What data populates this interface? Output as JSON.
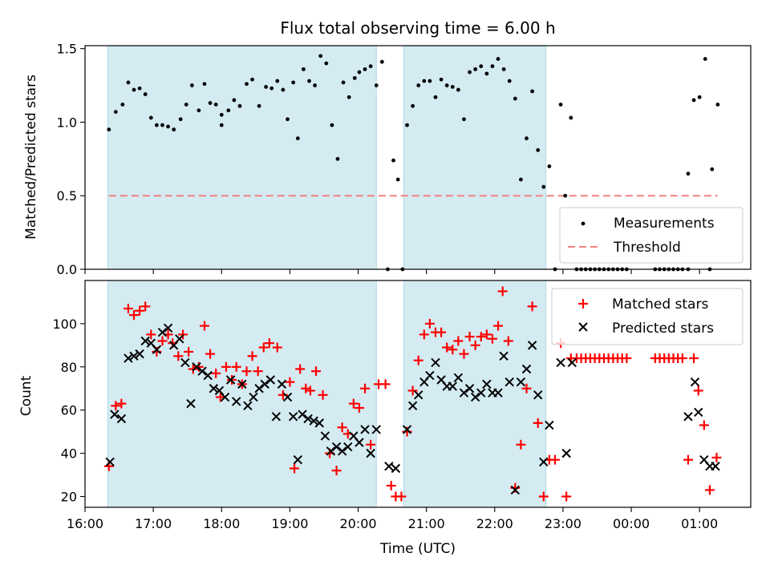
{
  "chart_data": {
    "title": "Flux total observing time = 6.00 h",
    "xlabel": "Time (UTC)",
    "x_ticks": [
      "16:00",
      "17:00",
      "18:00",
      "19:00",
      "20:00",
      "21:00",
      "22:00",
      "23:00",
      "00:00",
      "01:00"
    ],
    "x_range": [
      "16:00",
      "01:45"
    ],
    "observing_windows": [
      [
        "16:20",
        "20:16"
      ],
      [
        "20:40",
        "22:45"
      ]
    ],
    "top": {
      "type": "scatter",
      "ylabel": "Matched/Predicted stars",
      "ylim": [
        0,
        1.52
      ],
      "y_ticks": [
        "0.0",
        "0.5",
        "1.0",
        "1.5"
      ],
      "threshold": 0.5,
      "legend": {
        "position": "lower-right",
        "entries": [
          "Measurements",
          "Threshold"
        ]
      },
      "colors": {
        "measurements": "#000000",
        "threshold": "#f08080",
        "window": "#add8e6"
      },
      "measurements": [
        [
          "16:21",
          0.95
        ],
        [
          "16:27",
          1.07
        ],
        [
          "16:33",
          1.12
        ],
        [
          "16:38",
          1.27
        ],
        [
          "16:43",
          1.22
        ],
        [
          "16:48",
          1.23
        ],
        [
          "16:53",
          1.19
        ],
        [
          "16:58",
          1.03
        ],
        [
          "17:03",
          0.98
        ],
        [
          "17:08",
          0.98
        ],
        [
          "17:13",
          0.97
        ],
        [
          "17:18",
          0.95
        ],
        [
          "17:24",
          1.02
        ],
        [
          "17:29",
          1.12
        ],
        [
          "17:34",
          1.25
        ],
        [
          "17:40",
          1.08
        ],
        [
          "17:45",
          1.26
        ],
        [
          "17:50",
          1.13
        ],
        [
          "17:55",
          1.12
        ],
        [
          "18:00",
          1.05
        ],
        [
          "18:00",
          0.98
        ],
        [
          "18:06",
          1.08
        ],
        [
          "18:11",
          1.15
        ],
        [
          "18:16",
          1.11
        ],
        [
          "18:22",
          1.26
        ],
        [
          "18:27",
          1.29
        ],
        [
          "18:33",
          1.11
        ],
        [
          "18:39",
          1.24
        ],
        [
          "18:44",
          1.23
        ],
        [
          "18:49",
          1.28
        ],
        [
          "18:54",
          1.22
        ],
        [
          "18:58",
          1.02
        ],
        [
          "19:03",
          1.27
        ],
        [
          "19:07",
          0.89
        ],
        [
          "19:12",
          1.36
        ],
        [
          "19:17",
          1.28
        ],
        [
          "19:22",
          1.25
        ],
        [
          "19:27",
          1.45
        ],
        [
          "19:32",
          1.4
        ],
        [
          "19:37",
          0.98
        ],
        [
          "19:42",
          0.75
        ],
        [
          "19:47",
          1.27
        ],
        [
          "19:52",
          1.17
        ],
        [
          "19:57",
          1.3
        ],
        [
          "20:01",
          1.34
        ],
        [
          "20:06",
          1.36
        ],
        [
          "20:11",
          1.38
        ],
        [
          "20:16",
          1.25
        ],
        [
          "20:21",
          1.41
        ],
        [
          "20:26",
          0.0
        ],
        [
          "20:31",
          0.74
        ],
        [
          "20:35",
          0.61
        ],
        [
          "20:39",
          0.0
        ],
        [
          "20:43",
          0.98
        ],
        [
          "20:48",
          1.11
        ],
        [
          "20:53",
          1.25
        ],
        [
          "20:58",
          1.28
        ],
        [
          "21:03",
          1.28
        ],
        [
          "21:08",
          1.17
        ],
        [
          "21:13",
          1.29
        ],
        [
          "21:18",
          1.25
        ],
        [
          "21:23",
          1.24
        ],
        [
          "21:28",
          1.22
        ],
        [
          "21:33",
          1.02
        ],
        [
          "21:38",
          1.34
        ],
        [
          "21:43",
          1.36
        ],
        [
          "21:48",
          1.38
        ],
        [
          "21:53",
          1.33
        ],
        [
          "21:58",
          1.38
        ],
        [
          "22:03",
          1.43
        ],
        [
          "22:08",
          1.36
        ],
        [
          "22:13",
          1.28
        ],
        [
          "22:18",
          1.16
        ],
        [
          "22:23",
          0.61
        ],
        [
          "22:28",
          0.89
        ],
        [
          "22:33",
          1.21
        ],
        [
          "22:38",
          0.81
        ],
        [
          "22:43",
          0.56
        ],
        [
          "22:48",
          0.7
        ],
        [
          "22:53",
          0.0
        ],
        [
          "22:58",
          1.12
        ],
        [
          "23:02",
          0.5
        ],
        [
          "23:07",
          1.03
        ],
        [
          "23:12",
          0.0
        ],
        [
          "23:16",
          0.0
        ],
        [
          "23:20",
          0.0
        ],
        [
          "23:24",
          0.0
        ],
        [
          "23:28",
          0.0
        ],
        [
          "23:32",
          0.0
        ],
        [
          "23:36",
          0.0
        ],
        [
          "23:40",
          0.0
        ],
        [
          "23:44",
          0.0
        ],
        [
          "23:48",
          0.0
        ],
        [
          "23:52",
          0.0
        ],
        [
          "23:56",
          0.0
        ],
        [
          "00:21",
          0.0
        ],
        [
          "00:25",
          0.0
        ],
        [
          "00:29",
          0.0
        ],
        [
          "00:33",
          0.0
        ],
        [
          "00:37",
          0.0
        ],
        [
          "00:41",
          0.0
        ],
        [
          "00:45",
          0.0
        ],
        [
          "00:50",
          0.65
        ],
        [
          "00:55",
          1.15
        ],
        [
          "01:00",
          1.17
        ],
        [
          "01:05",
          1.43
        ],
        [
          "01:11",
          0.68
        ],
        [
          "01:16",
          1.12
        ],
        [
          "00:50",
          0.0
        ],
        [
          "01:09",
          0.0
        ]
      ]
    },
    "bottom": {
      "type": "scatter",
      "ylabel": "Count",
      "ylim": [
        15,
        120
      ],
      "y_ticks": [
        "20",
        "40",
        "60",
        "80",
        "100"
      ],
      "legend": {
        "position": "top-right",
        "entries": [
          "Matched stars",
          "Predicted stars"
        ]
      },
      "colors": {
        "matched": "#ff0000",
        "predicted": "#000000",
        "window": "#add8e6"
      },
      "matched": [
        [
          "16:21",
          34
        ],
        [
          "16:27",
          62
        ],
        [
          "16:32",
          63
        ],
        [
          "16:38",
          107
        ],
        [
          "16:43",
          104
        ],
        [
          "16:48",
          106
        ],
        [
          "16:53",
          108
        ],
        [
          "16:58",
          95
        ],
        [
          "17:03",
          87
        ],
        [
          "17:08",
          92
        ],
        [
          "17:13",
          95
        ],
        [
          "17:17",
          91
        ],
        [
          "17:22",
          85
        ],
        [
          "17:26",
          95
        ],
        [
          "17:31",
          87
        ],
        [
          "17:35",
          79
        ],
        [
          "17:40",
          80
        ],
        [
          "17:45",
          99
        ],
        [
          "17:50",
          86
        ],
        [
          "17:55",
          77
        ],
        [
          "17:59",
          66
        ],
        [
          "18:04",
          80
        ],
        [
          "18:09",
          74
        ],
        [
          "18:13",
          80
        ],
        [
          "18:18",
          72
        ],
        [
          "18:22",
          78
        ],
        [
          "18:27",
          85
        ],
        [
          "18:32",
          78
        ],
        [
          "18:37",
          89
        ],
        [
          "18:42",
          91
        ],
        [
          "18:49",
          89
        ],
        [
          "18:54",
          67
        ],
        [
          "19:00",
          73
        ],
        [
          "19:04",
          33
        ],
        [
          "19:09",
          79
        ],
        [
          "19:14",
          70
        ],
        [
          "19:18",
          69
        ],
        [
          "19:23",
          78
        ],
        [
          "19:29",
          67
        ],
        [
          "19:35",
          40
        ],
        [
          "19:41",
          32
        ],
        [
          "19:46",
          52
        ],
        [
          "19:51",
          49
        ],
        [
          "19:56",
          63
        ],
        [
          "20:01",
          61
        ],
        [
          "20:06",
          70
        ],
        [
          "20:11",
          44
        ],
        [
          "20:18",
          72
        ],
        [
          "20:24",
          72
        ],
        [
          "20:29",
          25
        ],
        [
          "20:33",
          20
        ],
        [
          "20:38",
          20
        ],
        [
          "20:43",
          50
        ],
        [
          "20:48",
          69
        ],
        [
          "20:53",
          83
        ],
        [
          "20:58",
          95
        ],
        [
          "21:03",
          100
        ],
        [
          "21:08",
          96
        ],
        [
          "21:13",
          96
        ],
        [
          "21:18",
          89
        ],
        [
          "21:23",
          88
        ],
        [
          "21:28",
          92
        ],
        [
          "21:33",
          86
        ],
        [
          "21:38",
          94
        ],
        [
          "21:43",
          90
        ],
        [
          "21:48",
          94
        ],
        [
          "21:53",
          95
        ],
        [
          "21:58",
          93
        ],
        [
          "22:03",
          99
        ],
        [
          "22:07",
          115
        ],
        [
          "22:12",
          92
        ],
        [
          "22:18",
          24
        ],
        [
          "22:23",
          44
        ],
        [
          "22:28",
          70
        ],
        [
          "22:33",
          108
        ],
        [
          "22:38",
          54
        ],
        [
          "22:43",
          20
        ],
        [
          "22:48",
          37
        ],
        [
          "22:53",
          37
        ],
        [
          "22:58",
          91
        ],
        [
          "23:03",
          20
        ],
        [
          "23:07",
          84
        ],
        [
          "23:12",
          84
        ],
        [
          "23:16",
          84
        ],
        [
          "23:20",
          84
        ],
        [
          "23:24",
          84
        ],
        [
          "23:28",
          84
        ],
        [
          "23:32",
          84
        ],
        [
          "23:36",
          84
        ],
        [
          "23:40",
          84
        ],
        [
          "23:44",
          84
        ],
        [
          "23:48",
          84
        ],
        [
          "23:52",
          84
        ],
        [
          "23:56",
          84
        ],
        [
          "00:21",
          84
        ],
        [
          "00:25",
          84
        ],
        [
          "00:29",
          84
        ],
        [
          "00:33",
          84
        ],
        [
          "00:37",
          84
        ],
        [
          "00:41",
          84
        ],
        [
          "00:45",
          84
        ],
        [
          "00:50",
          37
        ],
        [
          "00:55",
          84
        ],
        [
          "00:59",
          69
        ],
        [
          "01:04",
          53
        ],
        [
          "01:09",
          23
        ],
        [
          "01:15",
          38
        ]
      ],
      "predicted": [
        [
          "16:22",
          36
        ],
        [
          "16:26",
          58
        ],
        [
          "16:32",
          56
        ],
        [
          "16:38",
          84
        ],
        [
          "16:43",
          85
        ],
        [
          "16:48",
          86
        ],
        [
          "16:53",
          92
        ],
        [
          "16:58",
          91
        ],
        [
          "17:03",
          88
        ],
        [
          "17:08",
          96
        ],
        [
          "17:13",
          98
        ],
        [
          "17:18",
          90
        ],
        [
          "17:23",
          93
        ],
        [
          "17:28",
          82
        ],
        [
          "17:33",
          63
        ],
        [
          "17:38",
          80
        ],
        [
          "17:43",
          78
        ],
        [
          "17:48",
          76
        ],
        [
          "17:53",
          70
        ],
        [
          "17:58",
          69
        ],
        [
          "18:03",
          66
        ],
        [
          "18:08",
          74
        ],
        [
          "18:13",
          64
        ],
        [
          "18:18",
          72
        ],
        [
          "18:23",
          62
        ],
        [
          "18:28",
          66
        ],
        [
          "18:33",
          70
        ],
        [
          "18:38",
          72
        ],
        [
          "18:43",
          74
        ],
        [
          "18:48",
          57
        ],
        [
          "18:53",
          72
        ],
        [
          "18:58",
          66
        ],
        [
          "19:03",
          57
        ],
        [
          "19:07",
          37
        ],
        [
          "19:11",
          58
        ],
        [
          "19:16",
          56
        ],
        [
          "19:21",
          55
        ],
        [
          "19:26",
          54
        ],
        [
          "19:31",
          48
        ],
        [
          "19:36",
          41
        ],
        [
          "19:41",
          43
        ],
        [
          "19:46",
          41
        ],
        [
          "19:51",
          43
        ],
        [
          "19:56",
          48
        ],
        [
          "20:01",
          45
        ],
        [
          "20:06",
          51
        ],
        [
          "20:11",
          40
        ],
        [
          "20:16",
          51
        ],
        [
          "20:27",
          34
        ],
        [
          "20:33",
          33
        ],
        [
          "20:43",
          51
        ],
        [
          "20:48",
          62
        ],
        [
          "20:53",
          67
        ],
        [
          "20:58",
          73
        ],
        [
          "21:03",
          76
        ],
        [
          "21:08",
          82
        ],
        [
          "21:13",
          74
        ],
        [
          "21:18",
          71
        ],
        [
          "21:23",
          71
        ],
        [
          "21:28",
          75
        ],
        [
          "21:33",
          68
        ],
        [
          "21:38",
          70
        ],
        [
          "21:43",
          66
        ],
        [
          "21:48",
          68
        ],
        [
          "21:53",
          72
        ],
        [
          "21:58",
          68
        ],
        [
          "22:03",
          68
        ],
        [
          "22:08",
          85
        ],
        [
          "22:13",
          73
        ],
        [
          "22:18",
          23
        ],
        [
          "22:23",
          73
        ],
        [
          "22:28",
          79
        ],
        [
          "22:33",
          90
        ],
        [
          "22:38",
          67
        ],
        [
          "22:43",
          36
        ],
        [
          "22:48",
          53
        ],
        [
          "22:58",
          82
        ],
        [
          "23:03",
          40
        ],
        [
          "23:08",
          82
        ],
        [
          "00:50",
          57
        ],
        [
          "00:56",
          73
        ],
        [
          "00:59",
          59
        ],
        [
          "01:04",
          37
        ],
        [
          "01:09",
          34
        ],
        [
          "01:14",
          34
        ]
      ]
    }
  }
}
